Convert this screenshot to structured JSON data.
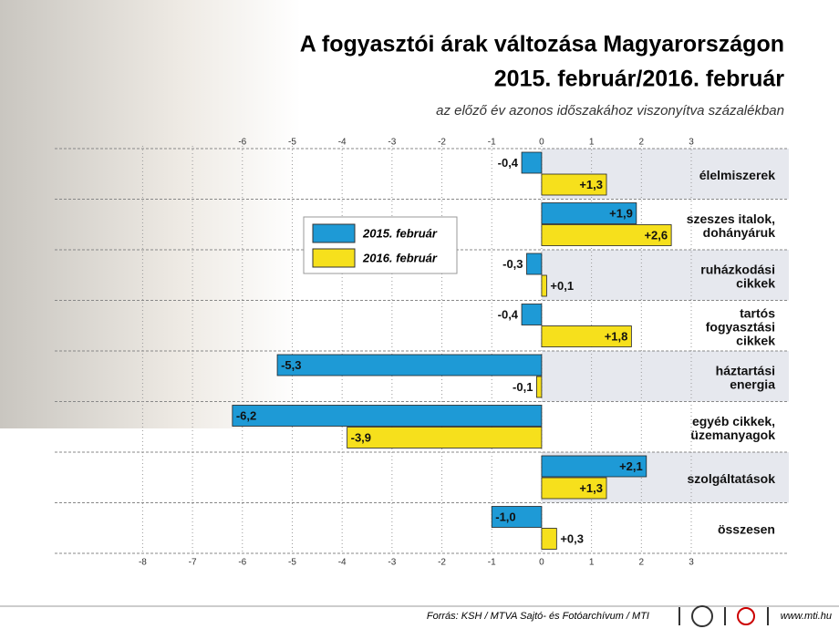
{
  "chart_data": {
    "type": "hbar",
    "title": [
      "A fogyasztói árak változása Magyarországon",
      "2015. február/2016. február"
    ],
    "subtitle": "az előző év azonos időszakához viszonyítva százalékban",
    "categories": [
      "élelmiszerek",
      "szeszes italok,\ndohányáruk",
      "ruházkodási\ncikkek",
      "tartós\nfogyasztási\ncikkek",
      "háztartási\nenergia",
      "egyéb cikkek,\nüzemanyagok",
      "szolgáltatások",
      "összesen"
    ],
    "series": [
      {
        "name": "2015. február",
        "color": "#1e9ad6",
        "values": [
          -0.4,
          1.9,
          -0.3,
          -0.4,
          -5.3,
          -6.2,
          2.1,
          -1.0
        ],
        "value_labels": [
          "-0,4",
          "+1,9",
          "-0,3",
          "-0,4",
          "-5,3",
          "-6,2",
          "+2,1",
          "-1,0"
        ]
      },
      {
        "name": "2016. február",
        "color": "#f6e01c",
        "values": [
          1.3,
          2.6,
          0.1,
          1.8,
          -0.1,
          -3.9,
          1.3,
          0.3
        ],
        "value_labels": [
          "+1,3",
          "+2,6",
          "+0,1",
          "+1,8",
          "-0,1",
          "-3,9",
          "+1,3",
          "+0,3"
        ]
      }
    ],
    "xlim": [
      -8,
      3
    ],
    "xticks": [
      -8,
      -7,
      -6,
      -5,
      -4,
      -3,
      -2,
      -1,
      0,
      1,
      2,
      3
    ],
    "xticks_top": [
      -6,
      -5,
      -4,
      -3,
      -2,
      -1,
      0,
      1,
      2,
      3
    ],
    "grid": true,
    "source": "Forrás: KSH / MTVA Sajtó- és Fotóarchívum / MTI",
    "website": "www.mti.hu"
  }
}
